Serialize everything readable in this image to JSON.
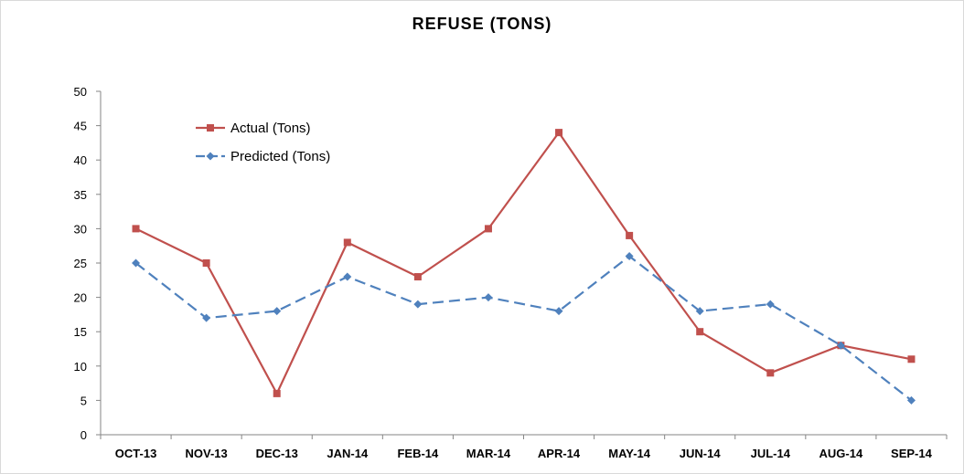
{
  "chart_data": {
    "type": "line",
    "title": "REFUSE (TONS)",
    "categories": [
      "OCT-13",
      "NOV-13",
      "DEC-13",
      "JAN-14",
      "FEB-14",
      "MAR-14",
      "APR-14",
      "MAY-14",
      "JUN-14",
      "JUL-14",
      "AUG-14",
      "SEP-14"
    ],
    "ylim": [
      0,
      50
    ],
    "yticks": [
      0,
      5,
      10,
      15,
      20,
      25,
      30,
      35,
      40,
      45,
      50
    ],
    "grid": false,
    "legend_position": "top-left",
    "series": [
      {
        "name": "Actual (Tons)",
        "color": "#c0504d",
        "marker": "square",
        "dashed": false,
        "values": [
          30,
          25,
          6,
          28,
          23,
          30,
          44,
          29,
          15,
          9,
          13,
          11
        ]
      },
      {
        "name": "Predicted (Tons)",
        "color": "#4f81bd",
        "marker": "diamond",
        "dashed": true,
        "values": [
          25,
          17,
          18,
          23,
          19,
          20,
          18,
          26,
          18,
          19,
          13,
          5
        ]
      }
    ]
  }
}
